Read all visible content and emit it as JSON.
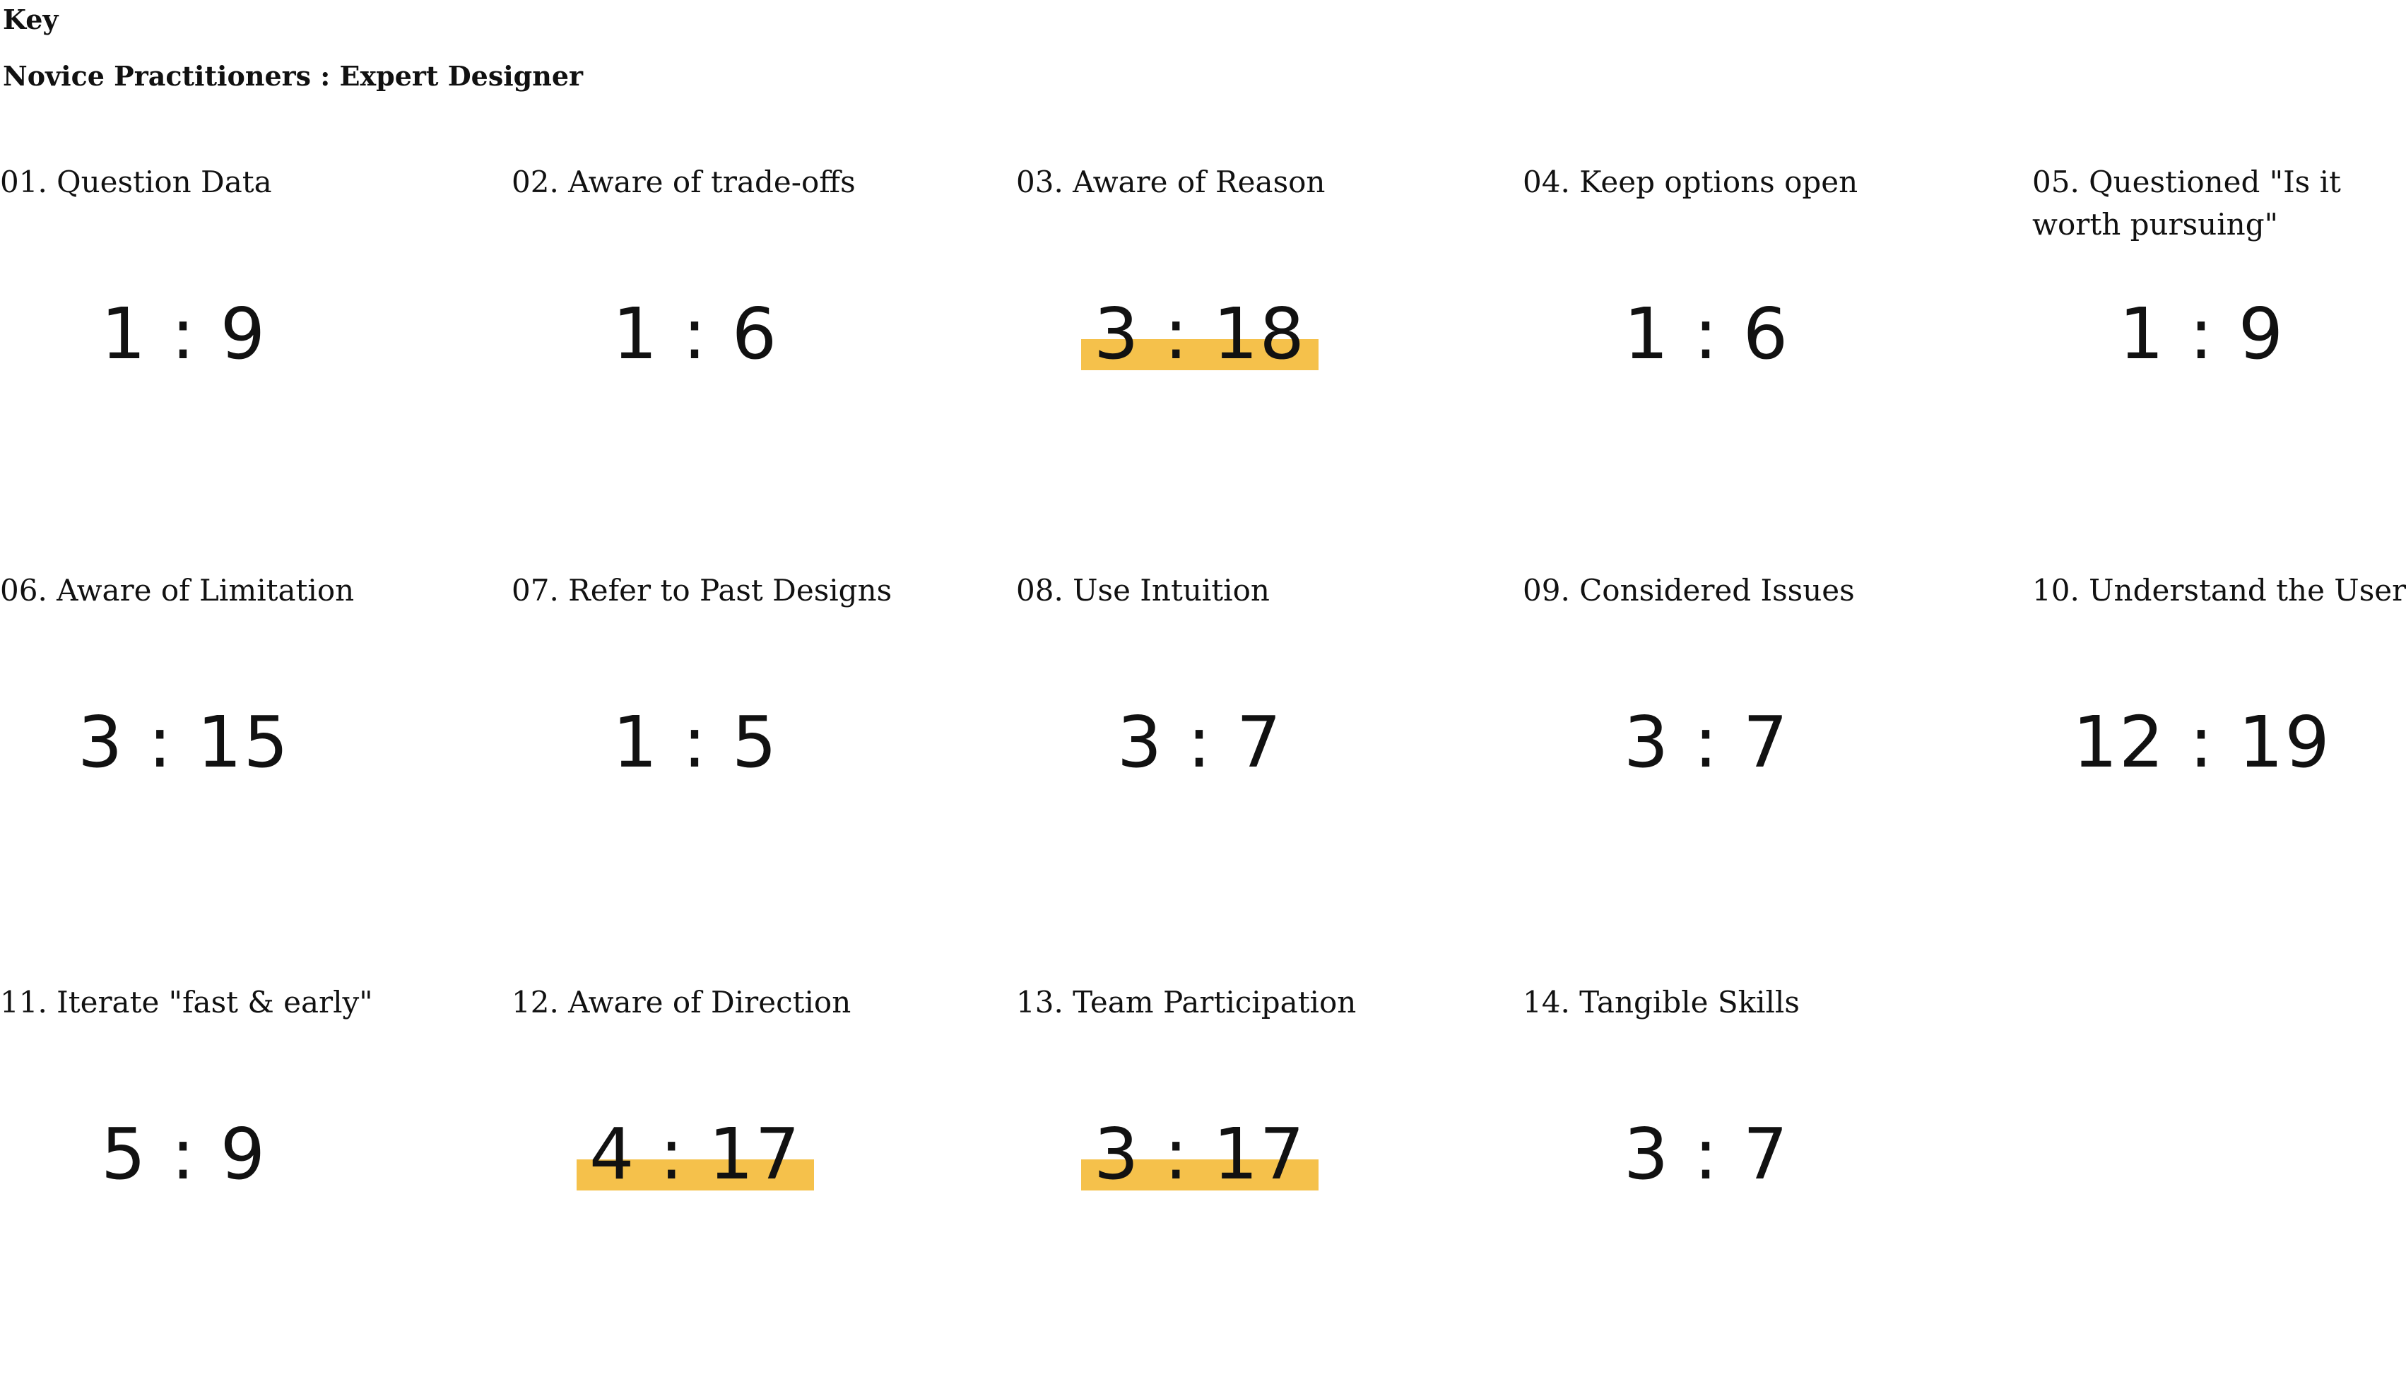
{
  "key": {
    "title": "Key",
    "subtitle": "Novice Practitioners : Expert Designer"
  },
  "items": [
    {
      "label": "01. Question Data",
      "ratio": "1 : 9",
      "highlighted": false
    },
    {
      "label": "02. Aware of trade-offs",
      "ratio": "1 : 6",
      "highlighted": false
    },
    {
      "label": "03. Aware of Reason",
      "ratio": "3 : 18",
      "highlighted": true
    },
    {
      "label": "04. Keep options open",
      "ratio": "1 : 6",
      "highlighted": false
    },
    {
      "label": "05. Questioned \"Is it worth pursuing\"",
      "ratio": "1 : 9",
      "highlighted": false
    },
    {
      "label": "06. Aware of Limitation",
      "ratio": "3 : 15",
      "highlighted": false
    },
    {
      "label": "07. Refer to Past Designs",
      "ratio": "1 : 5",
      "highlighted": false
    },
    {
      "label": "08. Use Intuition",
      "ratio": "3 : 7",
      "highlighted": false
    },
    {
      "label": "09. Considered Issues",
      "ratio": "3 : 7",
      "highlighted": false
    },
    {
      "label": "10. Understand the User",
      "ratio": "12 : 19",
      "highlighted": false
    },
    {
      "label": "11. Iterate \"fast & early\"",
      "ratio": "5 : 9",
      "highlighted": false
    },
    {
      "label": "12. Aware of Direction",
      "ratio": "4 : 17",
      "highlighted": true
    },
    {
      "label": "13. Team Participation",
      "ratio": "3 : 17",
      "highlighted": true
    },
    {
      "label": "14. Tangible Skills",
      "ratio": "3 : 7",
      "highlighted": false
    }
  ],
  "colors": {
    "highlight": "#f5c14b",
    "text": "#111111"
  }
}
